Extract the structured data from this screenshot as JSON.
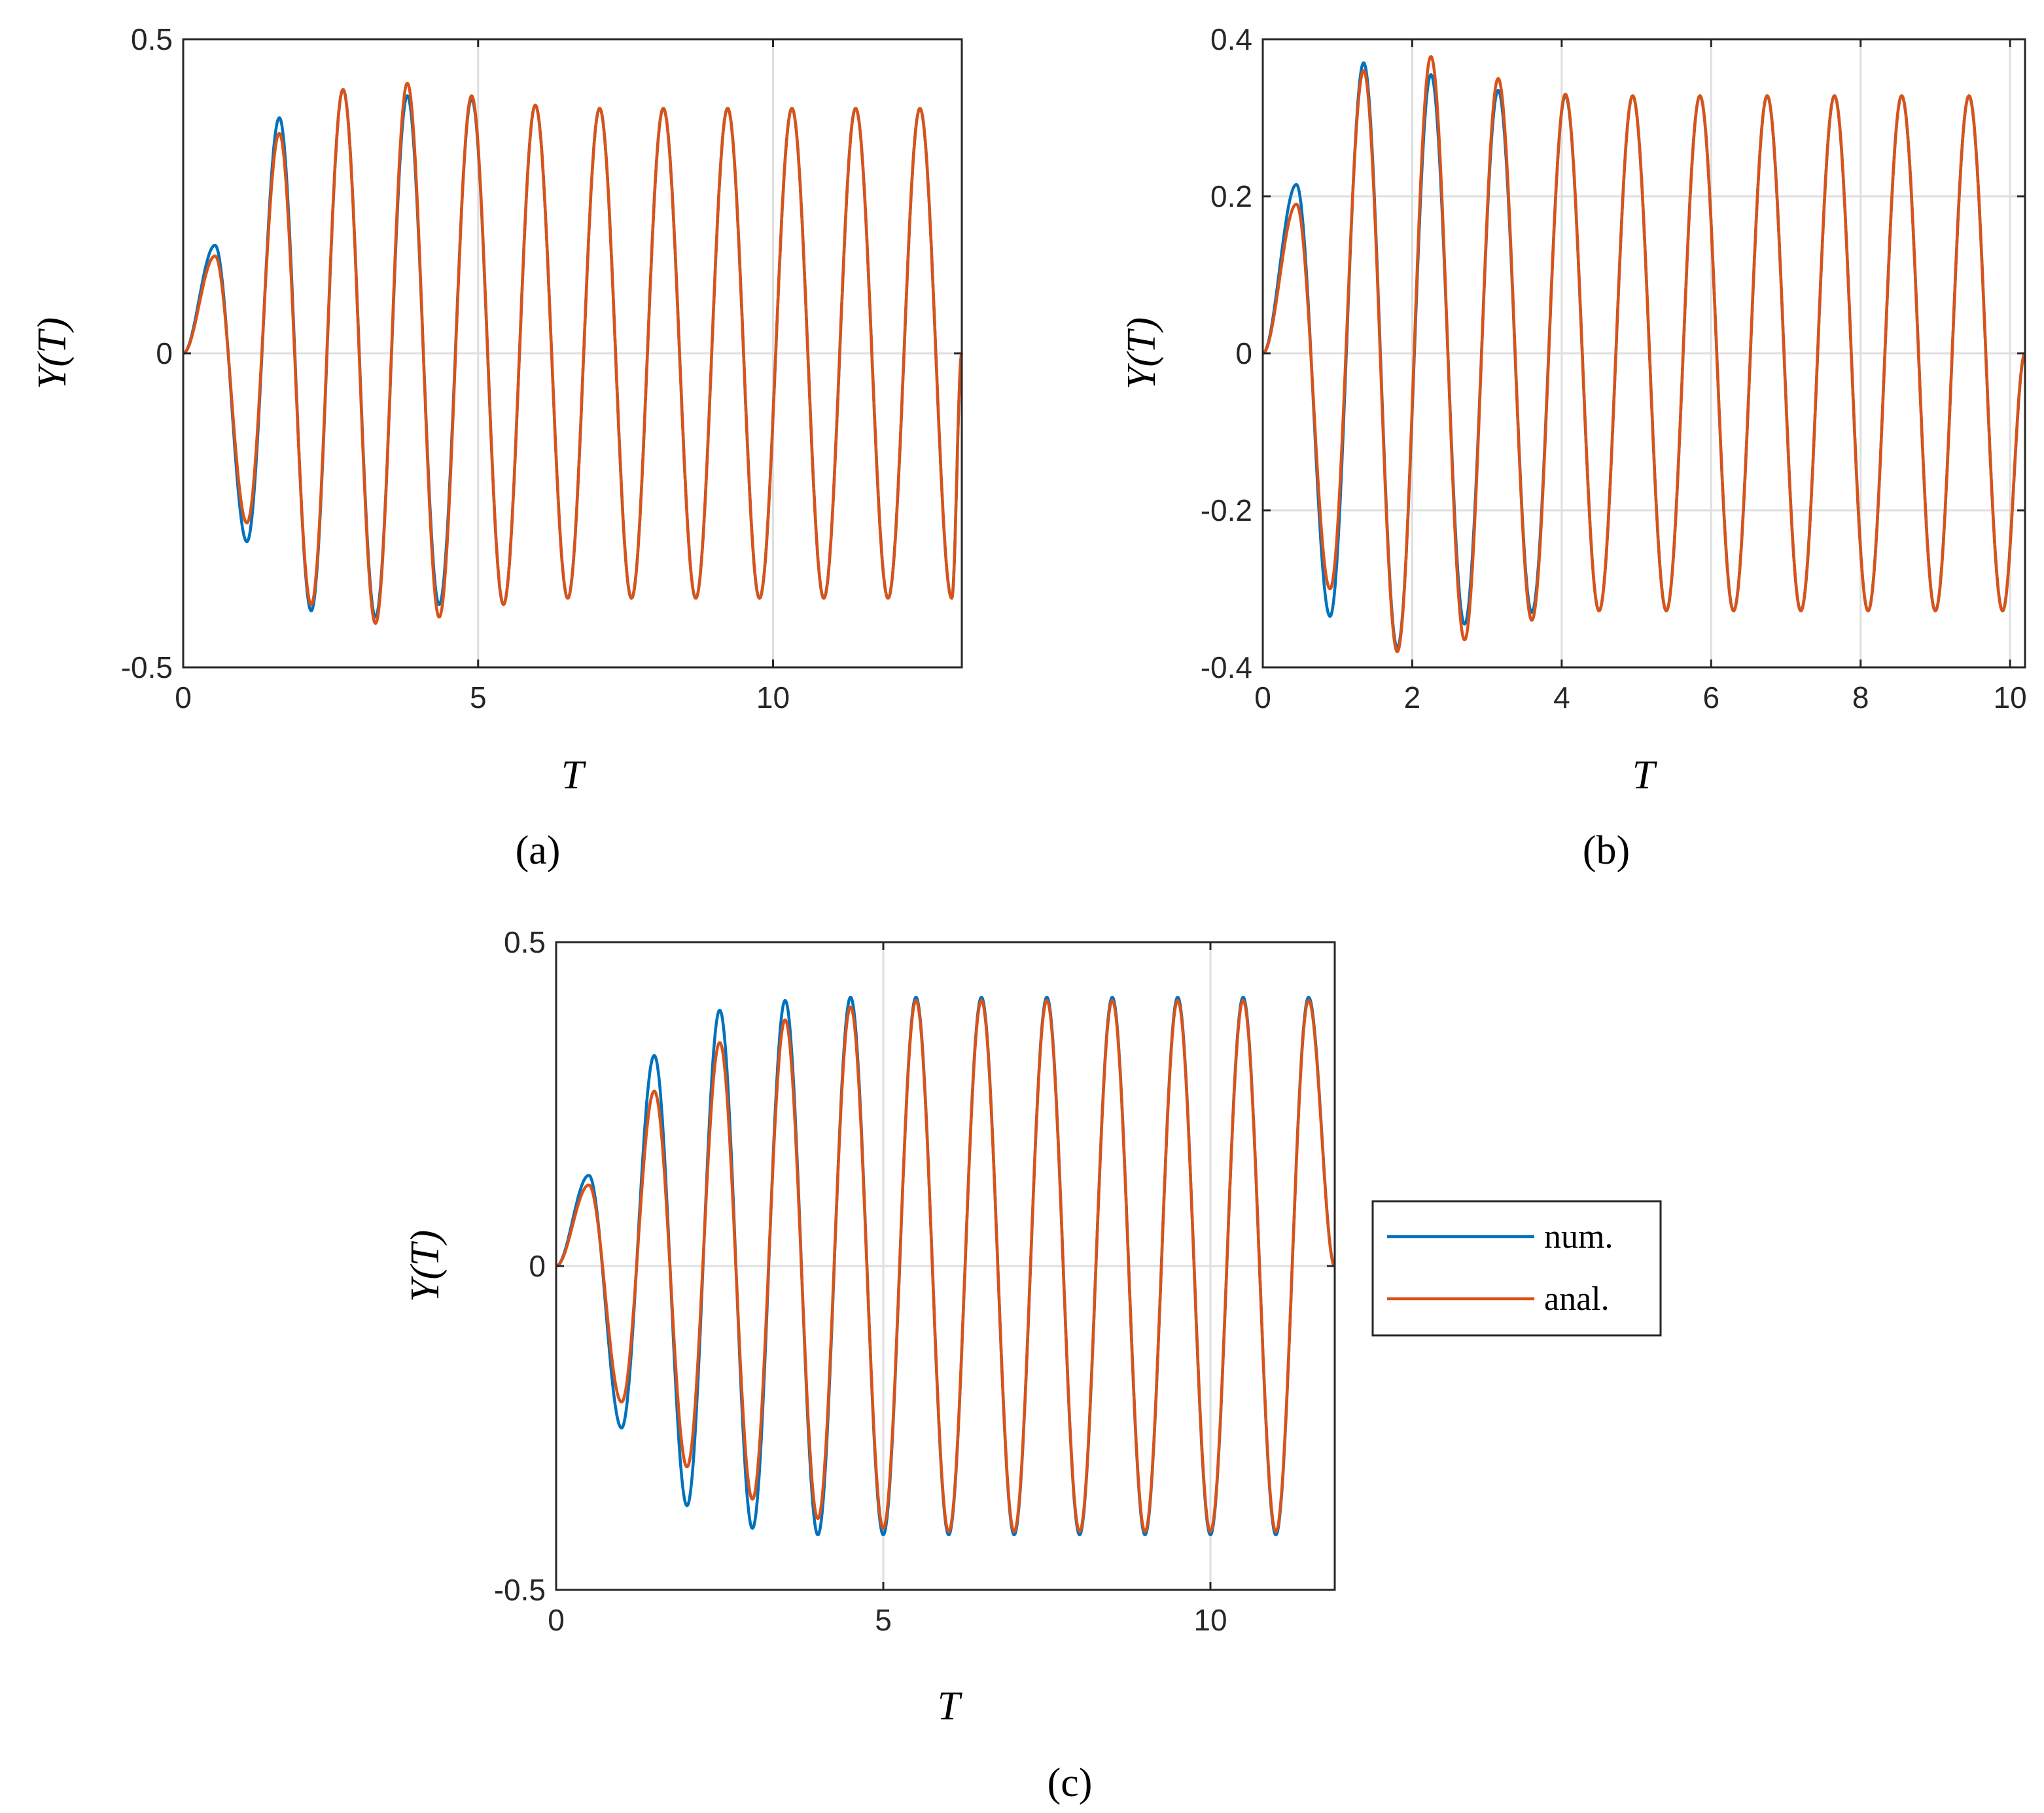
{
  "figure": {
    "legend": {
      "entries": [
        {
          "label": "num.",
          "color": "#0072BD"
        },
        {
          "label": "anal.",
          "color": "#D95319"
        }
      ]
    }
  },
  "chart_data": [
    {
      "panel": "(a)",
      "type": "line",
      "xlabel": "T",
      "ylabel": "Y(T)",
      "xlim": [
        0,
        13.2
      ],
      "ylim": [
        -0.5,
        0.5
      ],
      "xticks": [
        0,
        5,
        10
      ],
      "xtick_labels": [
        "0",
        "5",
        "10"
      ],
      "yticks": [
        -0.5,
        0,
        0.5
      ],
      "ytick_labels": [
        "-0.5",
        "0",
        "0.5"
      ],
      "grid": true,
      "series": [
        {
          "name": "num.",
          "color": "#0072BD",
          "x": [
            0,
            0.54,
            1.08,
            1.63,
            2.17,
            2.71,
            3.26,
            3.8,
            4.34,
            4.89,
            5.43,
            5.97,
            6.52,
            7.06,
            7.6,
            8.14,
            8.69,
            9.23,
            9.77,
            10.32,
            10.86,
            11.4,
            11.95,
            12.49,
            13.03,
            13.2
          ],
          "y": [
            0,
            0.172,
            -0.3,
            0.375,
            -0.41,
            0.42,
            -0.42,
            0.41,
            -0.4,
            0.405,
            -0.4,
            0.395,
            -0.39,
            0.39,
            -0.39,
            0.39,
            -0.39,
            0.39,
            -0.39,
            0.39,
            -0.39,
            0.39,
            -0.39,
            0.39,
            -0.39,
            0
          ]
        },
        {
          "name": "anal.",
          "color": "#D95319",
          "x": [
            0,
            0.54,
            1.08,
            1.63,
            2.17,
            2.71,
            3.26,
            3.8,
            4.34,
            4.89,
            5.43,
            5.97,
            6.52,
            7.06,
            7.6,
            8.14,
            8.69,
            9.23,
            9.77,
            10.32,
            10.86,
            11.4,
            11.95,
            12.49,
            13.03,
            13.2
          ],
          "y": [
            0,
            0.155,
            -0.27,
            0.35,
            -0.4,
            0.42,
            -0.43,
            0.43,
            -0.42,
            0.41,
            -0.4,
            0.395,
            -0.39,
            0.39,
            -0.39,
            0.39,
            -0.39,
            0.39,
            -0.39,
            0.39,
            -0.39,
            0.39,
            -0.39,
            0.39,
            -0.39,
            0
          ]
        }
      ]
    },
    {
      "panel": "(b)",
      "type": "line",
      "xlabel": "T",
      "ylabel": "Y(T)",
      "xlim": [
        0,
        10.2
      ],
      "ylim": [
        -0.4,
        0.4
      ],
      "xticks": [
        0,
        2,
        4,
        6,
        8,
        10
      ],
      "xtick_labels": [
        "0",
        "2",
        "4",
        "6",
        "8",
        "10"
      ],
      "yticks": [
        -0.4,
        -0.2,
        0,
        0.2,
        0.4
      ],
      "ytick_labels": [
        "-0.4",
        "-0.2",
        "0",
        "0.2",
        "0.4"
      ],
      "grid": true,
      "series": [
        {
          "name": "num.",
          "color": "#0072BD",
          "x": [
            0,
            0.45,
            0.9,
            1.35,
            1.8,
            2.25,
            2.7,
            3.15,
            3.6,
            4.05,
            4.5,
            4.95,
            5.4,
            5.85,
            6.3,
            6.75,
            7.2,
            7.65,
            8.1,
            8.55,
            9.0,
            9.45,
            9.9,
            10.2
          ],
          "y": [
            0,
            0.215,
            -0.335,
            0.37,
            -0.375,
            0.355,
            -0.345,
            0.335,
            -0.33,
            0.328,
            -0.328,
            0.328,
            -0.328,
            0.328,
            -0.328,
            0.328,
            -0.328,
            0.328,
            -0.328,
            0.328,
            -0.328,
            0.328,
            -0.328,
            0
          ]
        },
        {
          "name": "anal.",
          "color": "#D95319",
          "x": [
            0,
            0.45,
            0.9,
            1.35,
            1.8,
            2.25,
            2.7,
            3.15,
            3.6,
            4.05,
            4.5,
            4.95,
            5.4,
            5.85,
            6.3,
            6.75,
            7.2,
            7.65,
            8.1,
            8.55,
            9.0,
            9.45,
            9.9,
            10.2
          ],
          "y": [
            0,
            0.19,
            -0.3,
            0.36,
            -0.38,
            0.378,
            -0.365,
            0.35,
            -0.34,
            0.33,
            -0.328,
            0.328,
            -0.328,
            0.328,
            -0.328,
            0.328,
            -0.328,
            0.328,
            -0.328,
            0.328,
            -0.328,
            0.328,
            -0.328,
            0
          ]
        }
      ]
    },
    {
      "panel": "(c)",
      "type": "line",
      "xlabel": "T",
      "ylabel": "Y(T)",
      "xlim": [
        0,
        11.9
      ],
      "ylim": [
        -0.5,
        0.5
      ],
      "xticks": [
        0,
        5,
        10
      ],
      "xtick_labels": [
        "0",
        "5",
        "10"
      ],
      "yticks": [
        -0.5,
        0,
        0.5
      ],
      "ytick_labels": [
        "-0.5",
        "0",
        "0.5"
      ],
      "grid": true,
      "series": [
        {
          "name": "num.",
          "color": "#0072BD",
          "x": [
            0,
            0.5,
            1.0,
            1.5,
            2.0,
            2.5,
            3.0,
            3.5,
            4.0,
            4.5,
            5.0,
            5.5,
            6.0,
            6.5,
            7.0,
            7.5,
            8.0,
            8.5,
            9.0,
            9.5,
            10.0,
            10.5,
            11.0,
            11.5,
            11.9
          ],
          "y": [
            0,
            0.14,
            -0.25,
            0.325,
            -0.37,
            0.395,
            -0.405,
            0.41,
            -0.415,
            0.415,
            -0.415,
            0.415,
            -0.415,
            0.415,
            -0.415,
            0.415,
            -0.415,
            0.415,
            -0.415,
            0.415,
            -0.415,
            0.415,
            -0.415,
            0.415,
            0
          ]
        },
        {
          "name": "anal.",
          "color": "#D95319",
          "x": [
            0,
            0.5,
            1.0,
            1.5,
            2.0,
            2.5,
            3.0,
            3.5,
            4.0,
            4.5,
            5.0,
            5.5,
            6.0,
            6.5,
            7.0,
            7.5,
            8.0,
            8.5,
            9.0,
            9.5,
            10.0,
            10.5,
            11.0,
            11.5,
            11.9
          ],
          "y": [
            0,
            0.125,
            -0.21,
            0.27,
            -0.31,
            0.345,
            -0.36,
            0.38,
            -0.39,
            0.4,
            -0.405,
            0.41,
            -0.41,
            0.41,
            -0.41,
            0.41,
            -0.41,
            0.41,
            -0.41,
            0.41,
            -0.41,
            0.41,
            -0.41,
            0.41,
            0
          ]
        }
      ]
    }
  ]
}
